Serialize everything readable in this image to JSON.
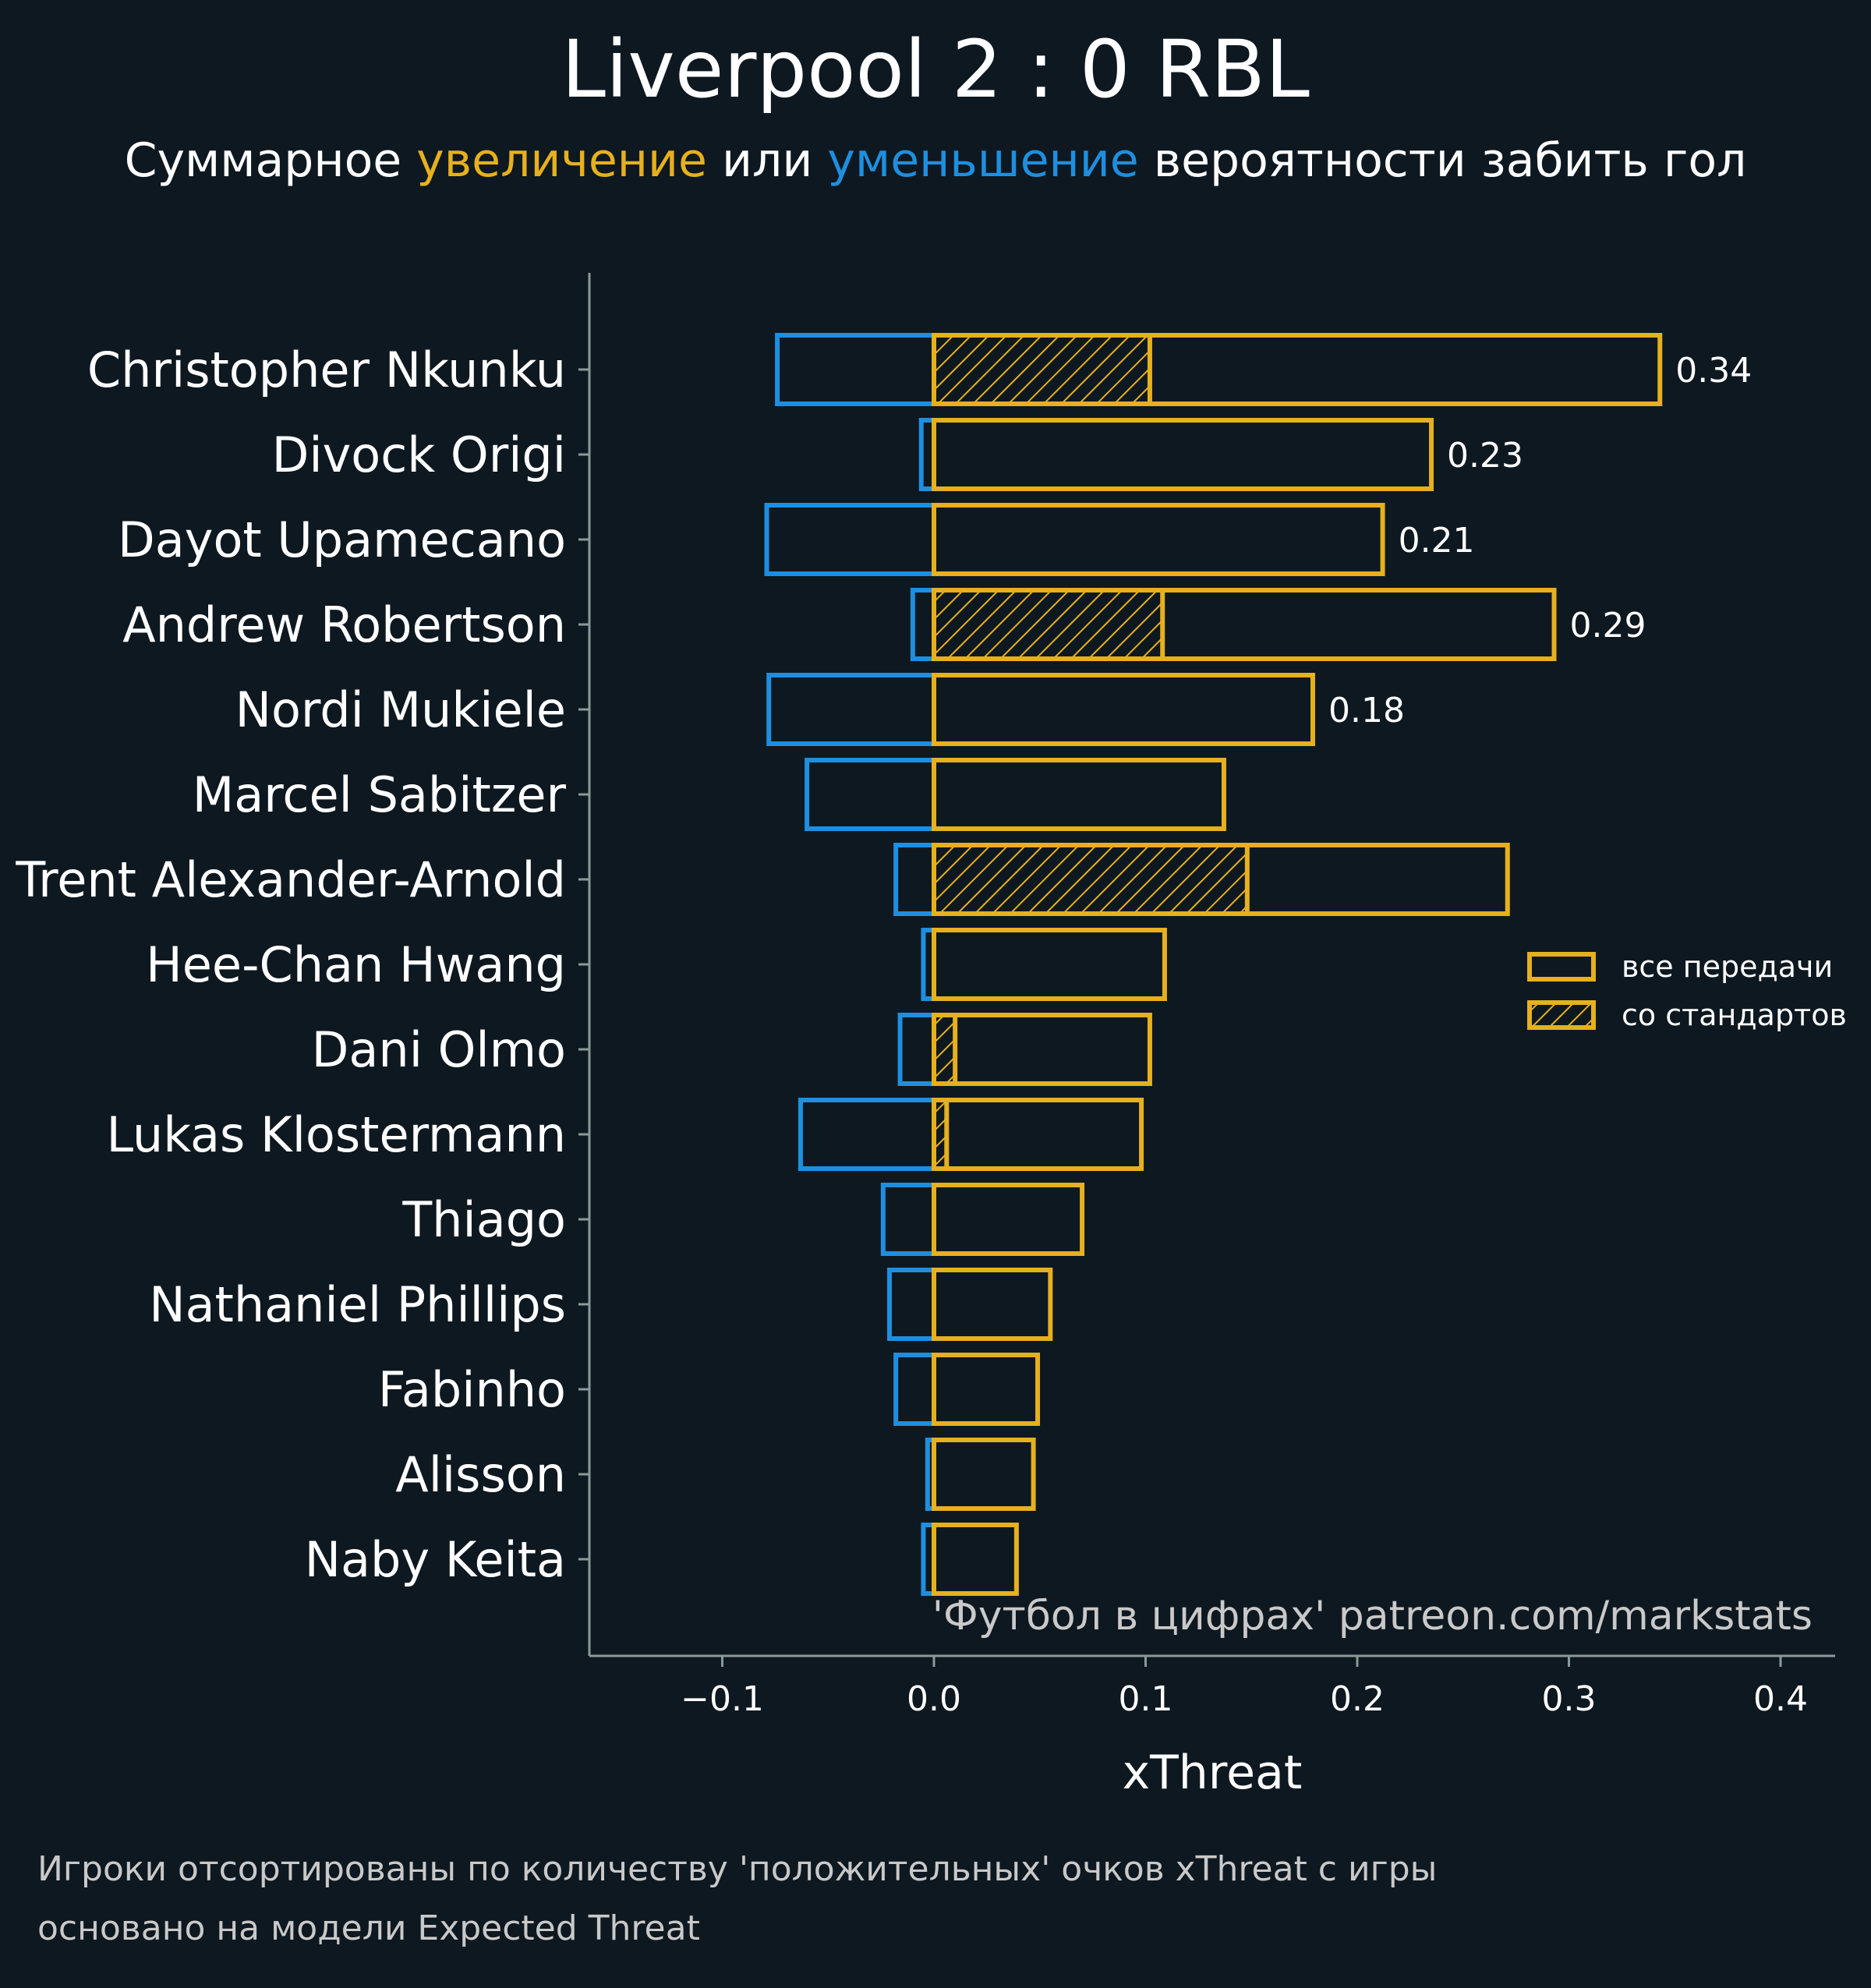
{
  "title": "Liverpool 2 : 0 RBL",
  "subtitle": {
    "part1": "Суммарное ",
    "positive_word": "увеличение",
    "part2": " или ",
    "negative_word": "уменьшение",
    "part3": " вероятности забить гол"
  },
  "colors": {
    "background": "#0e1820",
    "positive": "#e6b01e",
    "negative": "#1e8fe0",
    "axis": "#8a9a9a",
    "text": "#ffffff",
    "muted_text": "#c9c9c9"
  },
  "chart_data": {
    "type": "bar",
    "orientation": "horizontal",
    "xlabel": "xThreat",
    "ylabel": "",
    "xlim": [
      -0.165,
      0.427
    ],
    "xticks": [
      -0.1,
      0.0,
      0.1,
      0.2,
      0.3,
      0.4
    ],
    "xtick_labels": [
      "−0.1",
      "0.0",
      "0.1",
      "0.2",
      "0.3",
      "0.4"
    ],
    "categories": [
      "Christopher Nkunku",
      "Divock Origi",
      "Dayot Upamecano",
      "Andrew Robertson",
      "Nordi Mukiele",
      "Marcel Sabitzer",
      "Trent Alexander-Arnold",
      "Hee-Chan Hwang",
      "Dani Olmo",
      "Lukas Klostermann",
      "Thiago",
      "Nathaniel Phillips",
      "Fabinho",
      "Alisson",
      "Naby Keita"
    ],
    "series": [
      {
        "name": "все передачи (positive)",
        "style": "outline",
        "values": [
          0.343,
          0.235,
          0.212,
          0.293,
          0.179,
          0.137,
          0.271,
          0.109,
          0.102,
          0.098,
          0.07,
          0.055,
          0.049,
          0.047,
          0.039
        ]
      },
      {
        "name": "все передачи (negative)",
        "style": "outline",
        "values": [
          -0.074,
          -0.006,
          -0.079,
          -0.01,
          -0.078,
          -0.06,
          -0.018,
          -0.005,
          -0.016,
          -0.063,
          -0.024,
          -0.021,
          -0.018,
          -0.003,
          -0.005
        ]
      },
      {
        "name": "со стандартов",
        "style": "hatched",
        "values": [
          0.102,
          0.0,
          0.0,
          0.108,
          0.0,
          0.0,
          0.148,
          0.0,
          0.01,
          0.006,
          0.0,
          0.0,
          0.0,
          0.0,
          0.0
        ]
      }
    ],
    "value_labels": [
      {
        "category": "Christopher Nkunku",
        "text": "0.34"
      },
      {
        "category": "Divock Origi",
        "text": "0.23"
      },
      {
        "category": "Dayot Upamecano",
        "text": "0.21"
      },
      {
        "category": "Andrew Robertson",
        "text": "0.29"
      },
      {
        "category": "Nordi Mukiele",
        "text": "0.18"
      }
    ],
    "legend": {
      "placement": "right",
      "entries": [
        {
          "label": "все передачи",
          "style": "outline"
        },
        {
          "label": "со стандартов",
          "style": "hatched"
        }
      ]
    },
    "watermark": "'Футбол в цифрах' patreon.com/markstats"
  },
  "footnotes": [
    "Игроки отсортированы по количеству 'положительных' очков xThreat с игры",
    "основано на модели Expected Threat"
  ]
}
